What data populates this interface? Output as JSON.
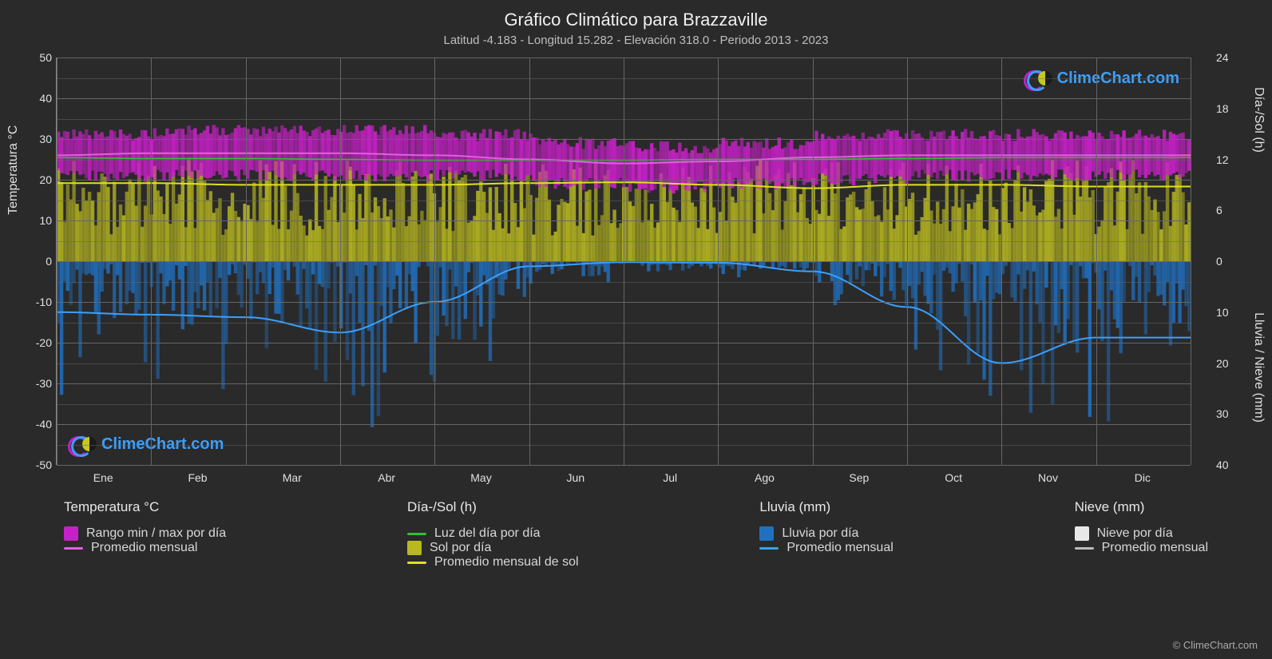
{
  "title": "Gráfico Climático para Brazzaville",
  "subtitle": "Latitud -4.183 - Longitud 15.282 - Elevación 318.0 - Periodo 2013 - 2023",
  "brand": "ClimeChart.com",
  "copyright": "© ClimeChart.com",
  "background_color": "#2a2a2a",
  "grid_color": "#666666",
  "axis_text_color": "#e0e0e0",
  "y_left": {
    "label": "Temperatura °C",
    "min": -50,
    "max": 50,
    "step": 10,
    "ticks": [
      50,
      40,
      30,
      20,
      10,
      0,
      -10,
      -20,
      -30,
      -40,
      -50
    ]
  },
  "y_right_top": {
    "label": "Día-/Sol (h)",
    "min": 0,
    "max": 24,
    "step": 6,
    "ticks": [
      24,
      18,
      12,
      6,
      0
    ]
  },
  "y_right_bottom": {
    "label": "Lluvia / Nieve (mm)",
    "min": 0,
    "max": 40,
    "step": 10,
    "ticks": [
      0,
      10,
      20,
      30,
      40
    ]
  },
  "x": {
    "labels": [
      "Ene",
      "Feb",
      "Mar",
      "Abr",
      "May",
      "Jun",
      "Jul",
      "Ago",
      "Sep",
      "Oct",
      "Nov",
      "Dic"
    ]
  },
  "series": {
    "temp_range_color": "#c820c8",
    "temp_avg_color": "#e060e0",
    "daylight_line_color": "#30c030",
    "sun_bar_color": "#b8b820",
    "sun_avg_color": "#e0e020",
    "rain_bar_color": "#2070c0",
    "rain_avg_color": "#3aa0ff",
    "snow_bar_color": "#e8e8e8",
    "snow_avg_color": "#bbbbbb",
    "daily_temp_min": [
      21,
      21,
      21,
      21,
      21,
      19,
      18,
      19,
      20,
      21,
      21,
      21
    ],
    "daily_temp_max": [
      31,
      32,
      32,
      32,
      31,
      29,
      28,
      29,
      31,
      31,
      31,
      31
    ],
    "monthly_temp_avg": [
      26,
      26.5,
      26.5,
      26.5,
      26,
      25,
      24,
      24.5,
      25.5,
      26,
      26,
      26
    ],
    "daylight_hours": [
      12.2,
      12.1,
      12.1,
      12.0,
      11.9,
      11.9,
      11.9,
      12.0,
      12.0,
      12.1,
      12.2,
      12.2
    ],
    "sun_hours_daily_max": [
      10,
      10,
      10,
      10,
      10,
      10,
      10,
      10,
      10,
      10,
      10,
      10
    ],
    "sun_hours_monthly_avg": [
      9.2,
      9.2,
      9.0,
      9.0,
      9.0,
      9.2,
      9.3,
      9.0,
      8.6,
      9.0,
      9.0,
      8.8
    ],
    "rain_daily_max_mm": [
      22,
      22,
      24,
      26,
      18,
      4,
      2,
      3,
      8,
      22,
      30,
      26
    ],
    "rain_monthly_avg_mm": [
      10,
      10.5,
      11,
      14,
      8,
      1,
      0.2,
      0.3,
      2,
      9,
      20,
      15
    ],
    "snow_daily_max_mm": [
      0,
      0,
      0,
      0,
      0,
      0,
      0,
      0,
      0,
      0,
      0,
      0
    ],
    "snow_monthly_avg_mm": [
      0,
      0,
      0,
      0,
      0,
      0,
      0,
      0,
      0,
      0,
      0,
      0
    ]
  },
  "legend": {
    "col1_title": "Temperatura °C",
    "col1_items": [
      {
        "swatch": "box",
        "color": "#c820c8",
        "label": "Rango min / max por día"
      },
      {
        "swatch": "line",
        "color": "#e060e0",
        "label": "Promedio mensual"
      }
    ],
    "col2_title": "Día-/Sol (h)",
    "col2_items": [
      {
        "swatch": "line",
        "color": "#30c030",
        "label": "Luz del día por día"
      },
      {
        "swatch": "box",
        "color": "#b8b820",
        "label": "Sol por día"
      },
      {
        "swatch": "line",
        "color": "#e0e020",
        "label": "Promedio mensual de sol"
      }
    ],
    "col3_title": "Lluvia (mm)",
    "col3_items": [
      {
        "swatch": "box",
        "color": "#2070c0",
        "label": "Lluvia por día"
      },
      {
        "swatch": "line",
        "color": "#3aa0ff",
        "label": "Promedio mensual"
      }
    ],
    "col4_title": "Nieve (mm)",
    "col4_items": [
      {
        "swatch": "box",
        "color": "#e8e8e8",
        "label": "Nieve por día"
      },
      {
        "swatch": "line",
        "color": "#bbbbbb",
        "label": "Promedio mensual"
      }
    ]
  }
}
